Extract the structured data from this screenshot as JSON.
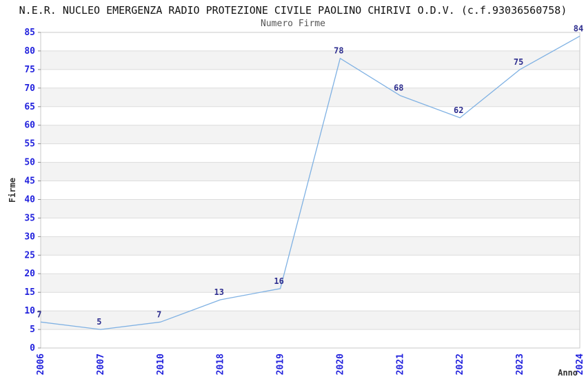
{
  "chart_data": {
    "type": "line",
    "title": "N.E.R. NUCLEO EMERGENZA RADIO PROTEZIONE CIVILE PAOLINO CHIRIVI O.D.V. (c.f.93036560758)",
    "subtitle": "Numero Firme",
    "xlabel": "Anno",
    "ylabel": "Firme",
    "categories": [
      "2006",
      "2007",
      "2010",
      "2018",
      "2019",
      "2020",
      "2021",
      "2022",
      "2023",
      "2024"
    ],
    "values": [
      7,
      5,
      7,
      13,
      16,
      78,
      68,
      62,
      75,
      84
    ],
    "ylim": [
      0,
      85
    ],
    "ytick_step": 5,
    "grid": "horizontal-bands-alternating",
    "legend": "none",
    "x_tick_rotation": -90,
    "colors": {
      "line": "#7fb1e3",
      "tick_label": "#2222dd",
      "data_label": "#2e2e8f",
      "band": "#f3f3f3",
      "grid_line": "#dcdcdc",
      "plot_border": "#c8c8c8",
      "tick_mark": "#888888",
      "title": "#111111",
      "subtitle": "#555555",
      "axis_label": "#333333",
      "background": "#ffffff"
    }
  }
}
